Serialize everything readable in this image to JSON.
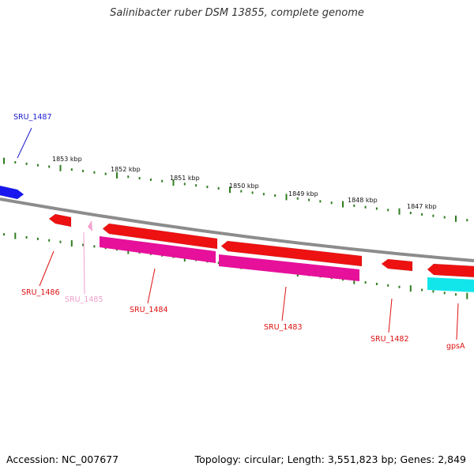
{
  "title": "Salinibacter ruber DSM 13855, complete genome",
  "footer": {
    "accession": "Accession: NC_007677",
    "summary": "Topology: circular; Length: 3,551,823 bp; Genes: 2,849"
  },
  "colors": {
    "backbone": "#8c8c8c",
    "ticks": "#2f7d1f",
    "gene_red": "#ee1111",
    "gene_magenta": "#e6109a",
    "gene_pink": "#f4a0d0",
    "gene_blue": "#1818ee",
    "gene_cyan": "#13e6ea"
  },
  "scale_labels": [
    "1853 kbp",
    "1852 kbp",
    "1851 kbp",
    "1850 kbp",
    "1849 kbp",
    "1848 kbp",
    "1847 kbp"
  ],
  "genes": [
    {
      "name": "SRU_1487",
      "color": "#1a1acc"
    },
    {
      "name": "SRU_1486",
      "color": "#dd1111"
    },
    {
      "name": "SRU_1485",
      "color": "#f0a0cc"
    },
    {
      "name": "SRU_1484",
      "color": "#dd1111"
    },
    {
      "name": "SRU_1483",
      "color": "#dd1111"
    },
    {
      "name": "SRU_1482",
      "color": "#dd1111"
    },
    {
      "name": "gpsA",
      "color": "#dd1111"
    }
  ]
}
